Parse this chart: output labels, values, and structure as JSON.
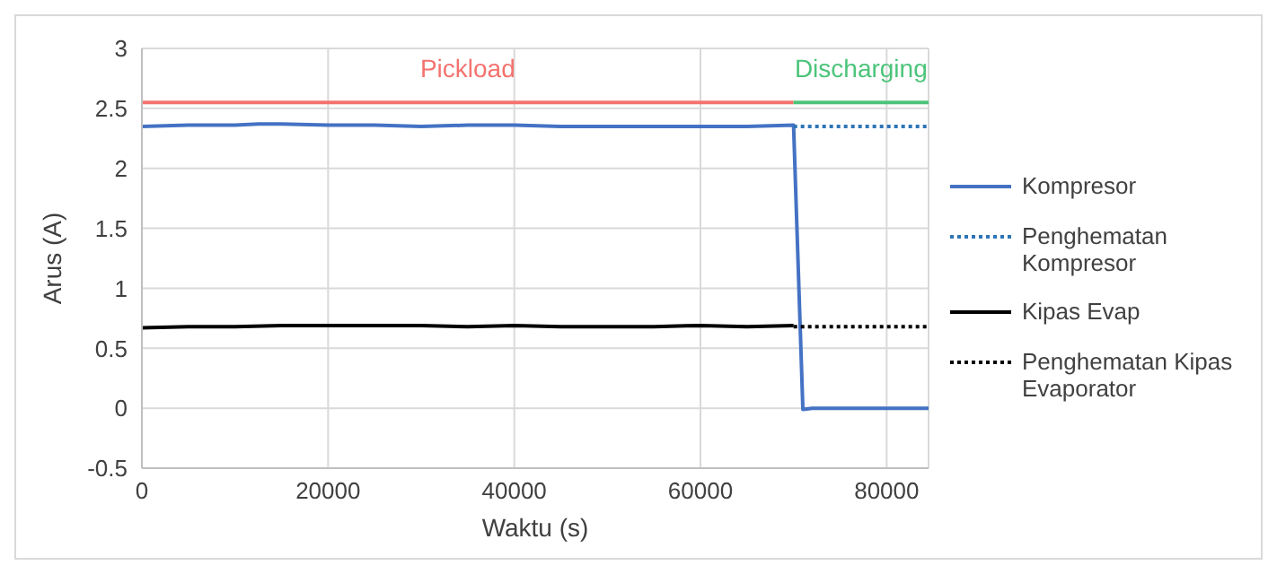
{
  "chart_data": {
    "type": "line",
    "xlabel": "Waktu (s)",
    "ylabel": "Arus (A)",
    "xlim": [
      0,
      84500
    ],
    "xticks": [
      0,
      20000,
      40000,
      60000,
      80000
    ],
    "ylim": [
      -0.5,
      3
    ],
    "yticks": [
      -0.5,
      0,
      0.5,
      1,
      1.5,
      2,
      2.5,
      3
    ],
    "grid": true,
    "legend": "right",
    "marker": "none",
    "series": [
      {
        "color": "#f4726e",
        "x": [
          0,
          70000
        ],
        "values": [
          2.55,
          2.55
        ]
      },
      {
        "color": "#4cc47a",
        "x": [
          70000,
          84500
        ],
        "values": [
          2.55,
          2.55
        ]
      },
      {
        "name": "Kompresor",
        "color": "#4472c4",
        "line_style": "solid",
        "x": [
          0,
          5000,
          10000,
          12500,
          15000,
          20000,
          25000,
          30000,
          35000,
          40000,
          45000,
          50000,
          55000,
          60000,
          65000,
          70000,
          71000,
          72000,
          84500
        ],
        "values": [
          2.35,
          2.36,
          2.36,
          2.37,
          2.37,
          2.36,
          2.36,
          2.35,
          2.36,
          2.36,
          2.35,
          2.35,
          2.35,
          2.35,
          2.35,
          2.36,
          -0.01,
          0,
          0
        ]
      },
      {
        "name": "Penghematan Kompresor",
        "color": "#2e75b6",
        "line_style": "dotted",
        "x": [
          70000,
          84500
        ],
        "values": [
          2.35,
          2.35
        ]
      },
      {
        "name": "Kipas Evap",
        "color": "#000000",
        "line_style": "solid",
        "x": [
          0,
          5000,
          10000,
          15000,
          20000,
          25000,
          30000,
          35000,
          40000,
          45000,
          50000,
          55000,
          60000,
          65000,
          70000
        ],
        "values": [
          0.67,
          0.68,
          0.68,
          0.69,
          0.69,
          0.69,
          0.69,
          0.68,
          0.69,
          0.68,
          0.68,
          0.68,
          0.69,
          0.68,
          0.69
        ]
      },
      {
        "name": "Penghematan Kipas Evaporator",
        "color": "#000000",
        "line_style": "dotted",
        "x": [
          70000,
          84500
        ],
        "values": [
          0.68,
          0.68
        ]
      }
    ],
    "annotations": [
      "Pickload",
      "Discharging"
    ]
  }
}
